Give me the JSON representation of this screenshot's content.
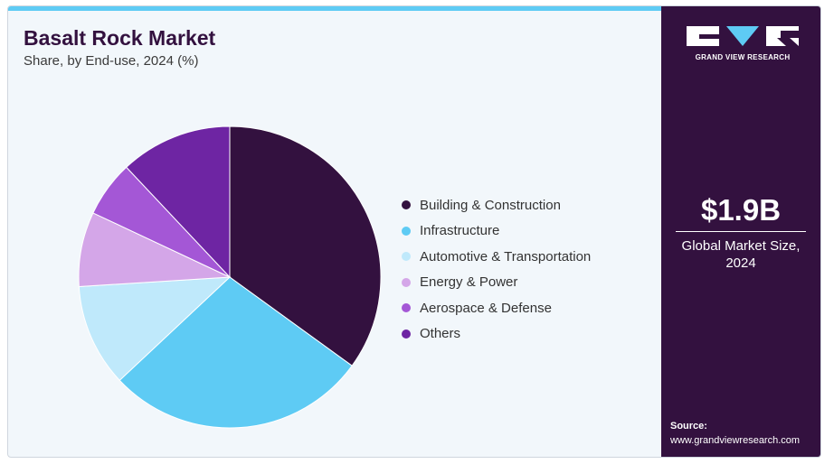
{
  "header": {
    "title": "Basalt Rock Market",
    "subtitle": "Share, by End-use, 2024 (%)"
  },
  "brand": {
    "name": "GRAND VIEW RESEARCH",
    "accent": "#5ecbf4",
    "panel": "#33113f"
  },
  "market": {
    "value": "$1.9B",
    "label": "Global Market Size, 2024"
  },
  "source": {
    "label": "Source:",
    "url": "www.grandviewresearch.com"
  },
  "chart_data": {
    "type": "pie",
    "title": "Basalt Rock Market",
    "subtitle": "Share, by End-use, 2024 (%)",
    "legend_position": "right",
    "categories": [
      "Building & Construction",
      "Infrastructure",
      "Automotive & Transportation",
      "Energy & Power",
      "Aerospace & Defense",
      "Others"
    ],
    "values": [
      35,
      28,
      11,
      8,
      6,
      12
    ],
    "colors": [
      "#33113f",
      "#5ecbf4",
      "#bfe9fb",
      "#d4a6e8",
      "#a457d6",
      "#6e25a3"
    ]
  }
}
